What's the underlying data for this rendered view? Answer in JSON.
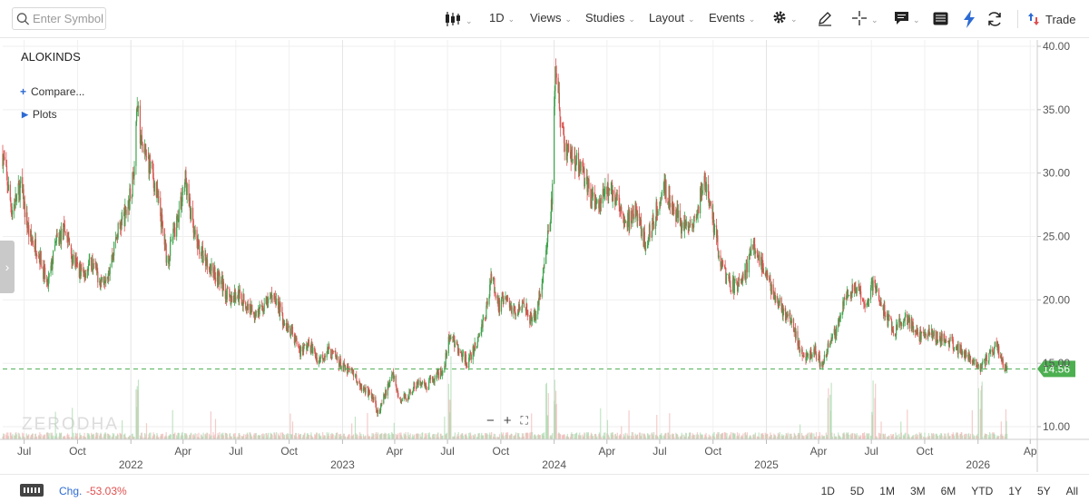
{
  "toolbar": {
    "search_placeholder": "Enter Symbol",
    "interval": "1D",
    "views": "Views",
    "studies": "Studies",
    "layout": "Layout",
    "events": "Events",
    "trade": "Trade"
  },
  "chart_header": {
    "symbol": "ALOKINDS",
    "compare": "Compare...",
    "plots": "Plots"
  },
  "watermark": "ZERODHA",
  "footer": {
    "chg_label": "Chg.",
    "chg_value": "-53.03%",
    "ranges": [
      "1D",
      "5D",
      "1M",
      "3M",
      "6M",
      "YTD",
      "1Y",
      "5Y",
      "All"
    ]
  },
  "colors": {
    "up": "#3fa34d",
    "down": "#d9534f",
    "price_tag": "#4caf50",
    "accent": "#2d6bd3"
  },
  "chart_data": {
    "type": "candlestick",
    "symbol": "ALOKINDS",
    "ylim": [
      9,
      40.5
    ],
    "y_ticks": [
      10,
      15,
      20,
      25,
      30,
      35,
      40
    ],
    "y_tick_labels": [
      "10.00",
      "15.00",
      "20.00",
      "25.00",
      "30.00",
      "35.00",
      "40.00"
    ],
    "x_month_ticks": [
      {
        "date": "2021-07",
        "label": "Jul"
      },
      {
        "date": "2021-10",
        "label": "Oct"
      },
      {
        "date": "2022-04",
        "label": "Apr"
      },
      {
        "date": "2022-07",
        "label": "Jul"
      },
      {
        "date": "2022-10",
        "label": "Oct"
      },
      {
        "date": "2023-04",
        "label": "Apr"
      },
      {
        "date": "2023-07",
        "label": "Jul"
      },
      {
        "date": "2023-10",
        "label": "Oct"
      },
      {
        "date": "2024-04",
        "label": "Apr"
      },
      {
        "date": "2024-07",
        "label": "Jul"
      },
      {
        "date": "2024-10",
        "label": "Oct"
      },
      {
        "date": "2025-04",
        "label": "Apr"
      },
      {
        "date": "2025-07",
        "label": "Jul"
      },
      {
        "date": "2025-10",
        "label": "Oct"
      },
      {
        "date": "2026-04",
        "label": "Ap"
      }
    ],
    "x_year_ticks": [
      {
        "date": "2022-01",
        "label": "2022"
      },
      {
        "date": "2023-01",
        "label": "2023"
      },
      {
        "date": "2024-01",
        "label": "2024"
      },
      {
        "date": "2025-01",
        "label": "2025"
      },
      {
        "date": "2026-01",
        "label": "2026"
      }
    ],
    "x_range": [
      "2021-05-25",
      "2026-04-10"
    ],
    "last_price": 14.56,
    "last_price_label": "14.56",
    "close_path": [
      [
        "2021-05-25",
        31.5
      ],
      [
        "2021-06-10",
        27.0
      ],
      [
        "2021-06-25",
        29.0
      ],
      [
        "2021-07-10",
        25.0
      ],
      [
        "2021-07-25",
        24.0
      ],
      [
        "2021-08-10",
        21.0
      ],
      [
        "2021-08-25",
        24.5
      ],
      [
        "2021-09-10",
        25.5
      ],
      [
        "2021-09-25",
        23.0
      ],
      [
        "2021-10-10",
        22.0
      ],
      [
        "2021-10-25",
        23.0
      ],
      [
        "2021-11-10",
        21.5
      ],
      [
        "2021-11-25",
        22.5
      ],
      [
        "2021-12-10",
        25.5
      ],
      [
        "2021-12-25",
        27.0
      ],
      [
        "2022-01-05",
        29.5
      ],
      [
        "2022-01-12",
        35.5
      ],
      [
        "2022-01-20",
        32.0
      ],
      [
        "2022-02-05",
        30.5
      ],
      [
        "2022-02-20",
        27.0
      ],
      [
        "2022-03-05",
        23.0
      ],
      [
        "2022-03-20",
        26.0
      ],
      [
        "2022-04-05",
        29.5
      ],
      [
        "2022-04-20",
        25.0
      ],
      [
        "2022-05-05",
        23.5
      ],
      [
        "2022-05-20",
        22.5
      ],
      [
        "2022-06-05",
        21.5
      ],
      [
        "2022-06-20",
        20.0
      ],
      [
        "2022-07-05",
        20.5
      ],
      [
        "2022-07-20",
        19.5
      ],
      [
        "2022-08-05",
        19.0
      ],
      [
        "2022-08-20",
        19.5
      ],
      [
        "2022-09-05",
        20.5
      ],
      [
        "2022-09-20",
        18.5
      ],
      [
        "2022-10-05",
        17.5
      ],
      [
        "2022-10-20",
        16.0
      ],
      [
        "2022-11-05",
        16.5
      ],
      [
        "2022-11-20",
        15.2
      ],
      [
        "2022-12-05",
        16.0
      ],
      [
        "2022-12-20",
        15.5
      ],
      [
        "2023-01-05",
        14.5
      ],
      [
        "2023-01-20",
        14.2
      ],
      [
        "2023-02-05",
        13.0
      ],
      [
        "2023-02-20",
        12.5
      ],
      [
        "2023-03-05",
        11.0
      ],
      [
        "2023-03-15",
        12.5
      ],
      [
        "2023-03-28",
        14.2
      ],
      [
        "2023-04-10",
        12.0
      ],
      [
        "2023-04-25",
        12.5
      ],
      [
        "2023-05-10",
        13.5
      ],
      [
        "2023-05-25",
        13.0
      ],
      [
        "2023-06-10",
        14.0
      ],
      [
        "2023-06-25",
        14.5
      ],
      [
        "2023-07-05",
        17.5
      ],
      [
        "2023-07-20",
        16.0
      ],
      [
        "2023-08-05",
        15.0
      ],
      [
        "2023-08-20",
        16.5
      ],
      [
        "2023-09-05",
        19.0
      ],
      [
        "2023-09-15",
        22.0
      ],
      [
        "2023-09-28",
        19.5
      ],
      [
        "2023-10-10",
        20.0
      ],
      [
        "2023-10-25",
        19.0
      ],
      [
        "2023-11-10",
        20.0
      ],
      [
        "2023-11-25",
        18.0
      ],
      [
        "2023-12-10",
        21.0
      ],
      [
        "2023-12-20",
        24.5
      ],
      [
        "2023-12-28",
        27.5
      ],
      [
        "2024-01-03",
        38.5
      ],
      [
        "2024-01-10",
        35.0
      ],
      [
        "2024-01-20",
        32.0
      ],
      [
        "2024-02-05",
        31.0
      ],
      [
        "2024-02-20",
        30.0
      ],
      [
        "2024-03-05",
        28.0
      ],
      [
        "2024-03-20",
        27.5
      ],
      [
        "2024-04-05",
        29.0
      ],
      [
        "2024-04-20",
        28.0
      ],
      [
        "2024-05-05",
        26.0
      ],
      [
        "2024-05-20",
        27.0
      ],
      [
        "2024-06-05",
        24.5
      ],
      [
        "2024-06-20",
        26.0
      ],
      [
        "2024-07-05",
        29.0
      ],
      [
        "2024-07-20",
        28.0
      ],
      [
        "2024-08-05",
        26.0
      ],
      [
        "2024-08-20",
        25.5
      ],
      [
        "2024-09-05",
        27.0
      ],
      [
        "2024-09-15",
        29.5
      ],
      [
        "2024-09-28",
        27.0
      ],
      [
        "2024-10-10",
        24.0
      ],
      [
        "2024-10-25",
        21.5
      ],
      [
        "2024-11-10",
        21.0
      ],
      [
        "2024-11-25",
        22.0
      ],
      [
        "2024-12-10",
        24.5
      ],
      [
        "2024-12-25",
        22.5
      ],
      [
        "2025-01-10",
        21.0
      ],
      [
        "2025-01-25",
        19.5
      ],
      [
        "2025-02-10",
        18.5
      ],
      [
        "2025-02-25",
        16.5
      ],
      [
        "2025-03-10",
        15.5
      ],
      [
        "2025-03-25",
        16.0
      ],
      [
        "2025-04-07",
        14.8
      ],
      [
        "2025-04-20",
        16.5
      ],
      [
        "2025-05-05",
        18.0
      ],
      [
        "2025-05-20",
        20.5
      ],
      [
        "2025-06-05",
        21.0
      ],
      [
        "2025-06-20",
        19.5
      ],
      [
        "2025-07-05",
        21.5
      ],
      [
        "2025-07-15",
        20.0
      ],
      [
        "2025-07-28",
        18.5
      ],
      [
        "2025-08-10",
        17.5
      ],
      [
        "2025-08-25",
        18.5
      ],
      [
        "2025-09-10",
        18.0
      ],
      [
        "2025-09-25",
        17.0
      ],
      [
        "2025-10-10",
        17.5
      ],
      [
        "2025-10-25",
        17.0
      ],
      [
        "2025-11-10",
        16.8
      ],
      [
        "2025-11-25",
        16.2
      ],
      [
        "2025-12-10",
        15.8
      ],
      [
        "2025-12-25",
        15.3
      ],
      [
        "2026-01-05",
        14.8
      ],
      [
        "2026-01-20",
        15.5
      ],
      [
        "2026-02-01",
        16.5
      ],
      [
        "2026-02-10",
        15.2
      ],
      [
        "2026-02-20",
        14.56
      ]
    ],
    "volume_spikes": [
      "2022-01-12",
      "2023-07-05",
      "2023-12-20",
      "2024-01-03",
      "2025-04-20",
      "2025-07-05",
      "2026-01-05"
    ]
  }
}
